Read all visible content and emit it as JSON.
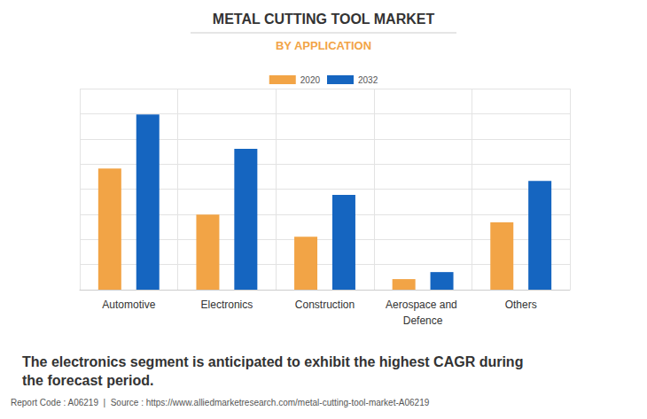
{
  "chart_data": {
    "type": "bar",
    "title": "METAL CUTTING TOOL MARKET",
    "subtitle": "BY APPLICATION",
    "categories": [
      "Automotive",
      "Electronics",
      "Construction",
      "Aerospace and Defence",
      "Others"
    ],
    "series": [
      {
        "name": "2020",
        "color": "#f2a446",
        "values": [
          4.82,
          2.99,
          2.11,
          0.42,
          2.68
        ]
      },
      {
        "name": "2032",
        "color": "#1565c0",
        "values": [
          6.97,
          5.6,
          3.77,
          0.7,
          4.33
        ]
      }
    ],
    "ylim": [
      0,
      8
    ],
    "yticks": [
      0,
      1,
      2,
      3,
      4,
      5,
      6,
      7,
      8
    ],
    "grid": true,
    "legend": "top",
    "tick_labels": "x",
    "annotations": [
      "The electronics segment is anticipated to exhibit the highest CAGR during the forecast period.",
      "Report Code : A06219  |  Source : https://www.alliedmarketresearch.com/metal-cutting-tool-market-A06219"
    ]
  }
}
